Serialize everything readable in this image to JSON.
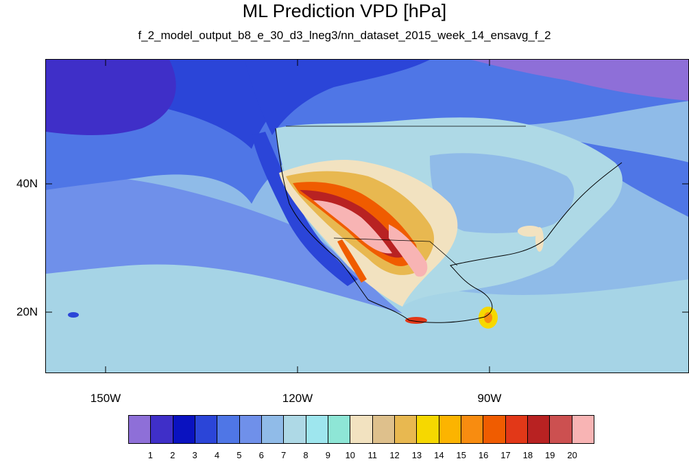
{
  "title": "ML Prediction VPD [hPa]",
  "subtitle": "f_2_model_output_b8_e_30_d3_lneg3/nn_dataset_2015_week_14_ensavg_f_2",
  "map": {
    "lat_labels": [
      "40N",
      "20N"
    ],
    "lon_labels": [
      "150W",
      "120W",
      "90W"
    ]
  },
  "colorbar": {
    "colors": [
      "#8e6fd8",
      "#3f2fc8",
      "#0a12c0",
      "#2b45d8",
      "#4f76e6",
      "#6f90ea",
      "#90bbe8",
      "#aed9e6",
      "#9ee6ee",
      "#8ee6d6",
      "#f2e2c0",
      "#dec08c",
      "#e8b850",
      "#f6d800",
      "#fcb400",
      "#f88c10",
      "#f05c00",
      "#e23818",
      "#b82222",
      "#cc5050",
      "#f8b4b4"
    ],
    "labels": [
      "1",
      "2",
      "3",
      "4",
      "5",
      "6",
      "7",
      "8",
      "9",
      "10",
      "11",
      "12",
      "13",
      "14",
      "15",
      "16",
      "17",
      "18",
      "19",
      "20"
    ]
  }
}
